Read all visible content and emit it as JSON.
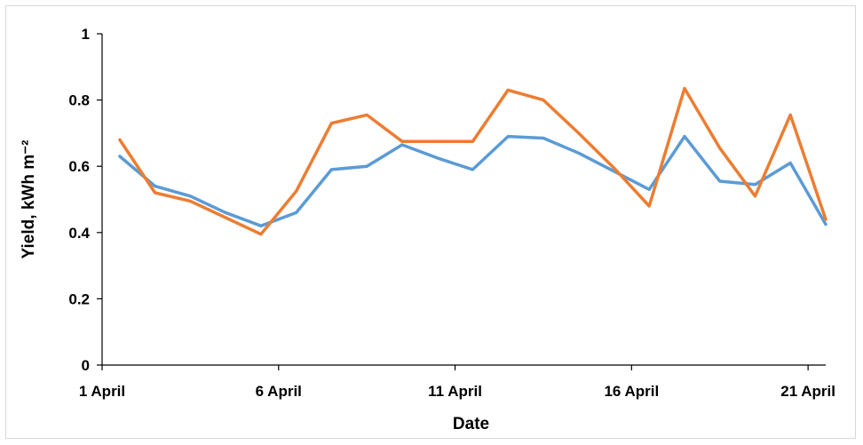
{
  "chart_data": {
    "type": "line",
    "title": "",
    "xlabel": "Date",
    "ylabel": "Yield, kWh m⁻²",
    "ylim": [
      0,
      1
    ],
    "yticks": [
      "0",
      "0.2",
      "0.4",
      "0.6",
      "0.8",
      "1"
    ],
    "x_range": [
      1,
      21.5
    ],
    "xticks": [
      {
        "day": 1,
        "label": "1 April"
      },
      {
        "day": 6,
        "label": "6 April"
      },
      {
        "day": 11,
        "label": "11 April"
      },
      {
        "day": 16,
        "label": "16 April"
      },
      {
        "day": 21,
        "label": "21 April"
      }
    ],
    "grid": false,
    "legend": "none",
    "series": [
      {
        "color": "#5b9bd5",
        "x": [
          1.5,
          2.5,
          3.5,
          4.5,
          5.5,
          6.5,
          7.5,
          8.5,
          9.5,
          10.5,
          11.5,
          12.5,
          13.5,
          14.5,
          15.5,
          16.5,
          17.5,
          18.5,
          19.5,
          20.5,
          21.5
        ],
        "values": [
          0.63,
          0.54,
          0.51,
          0.46,
          0.42,
          0.46,
          0.59,
          0.6,
          0.665,
          0.625,
          0.59,
          0.69,
          0.685,
          0.64,
          0.585,
          0.53,
          0.69,
          0.555,
          0.545,
          0.61,
          0.425
        ]
      },
      {
        "color": "#ed7d31",
        "x": [
          1.5,
          2.5,
          3.5,
          4.5,
          5.5,
          6.5,
          7.5,
          8.5,
          9.5,
          10.5,
          11.5,
          12.5,
          13.5,
          14.5,
          15.5,
          16.5,
          17.5,
          18.5,
          19.5,
          20.5,
          21.5
        ],
        "values": [
          0.68,
          0.52,
          0.495,
          0.445,
          0.395,
          0.525,
          0.73,
          0.755,
          0.675,
          0.675,
          0.675,
          0.83,
          0.8,
          0.7,
          0.595,
          0.48,
          0.835,
          0.655,
          0.51,
          0.755,
          0.44
        ]
      }
    ]
  }
}
